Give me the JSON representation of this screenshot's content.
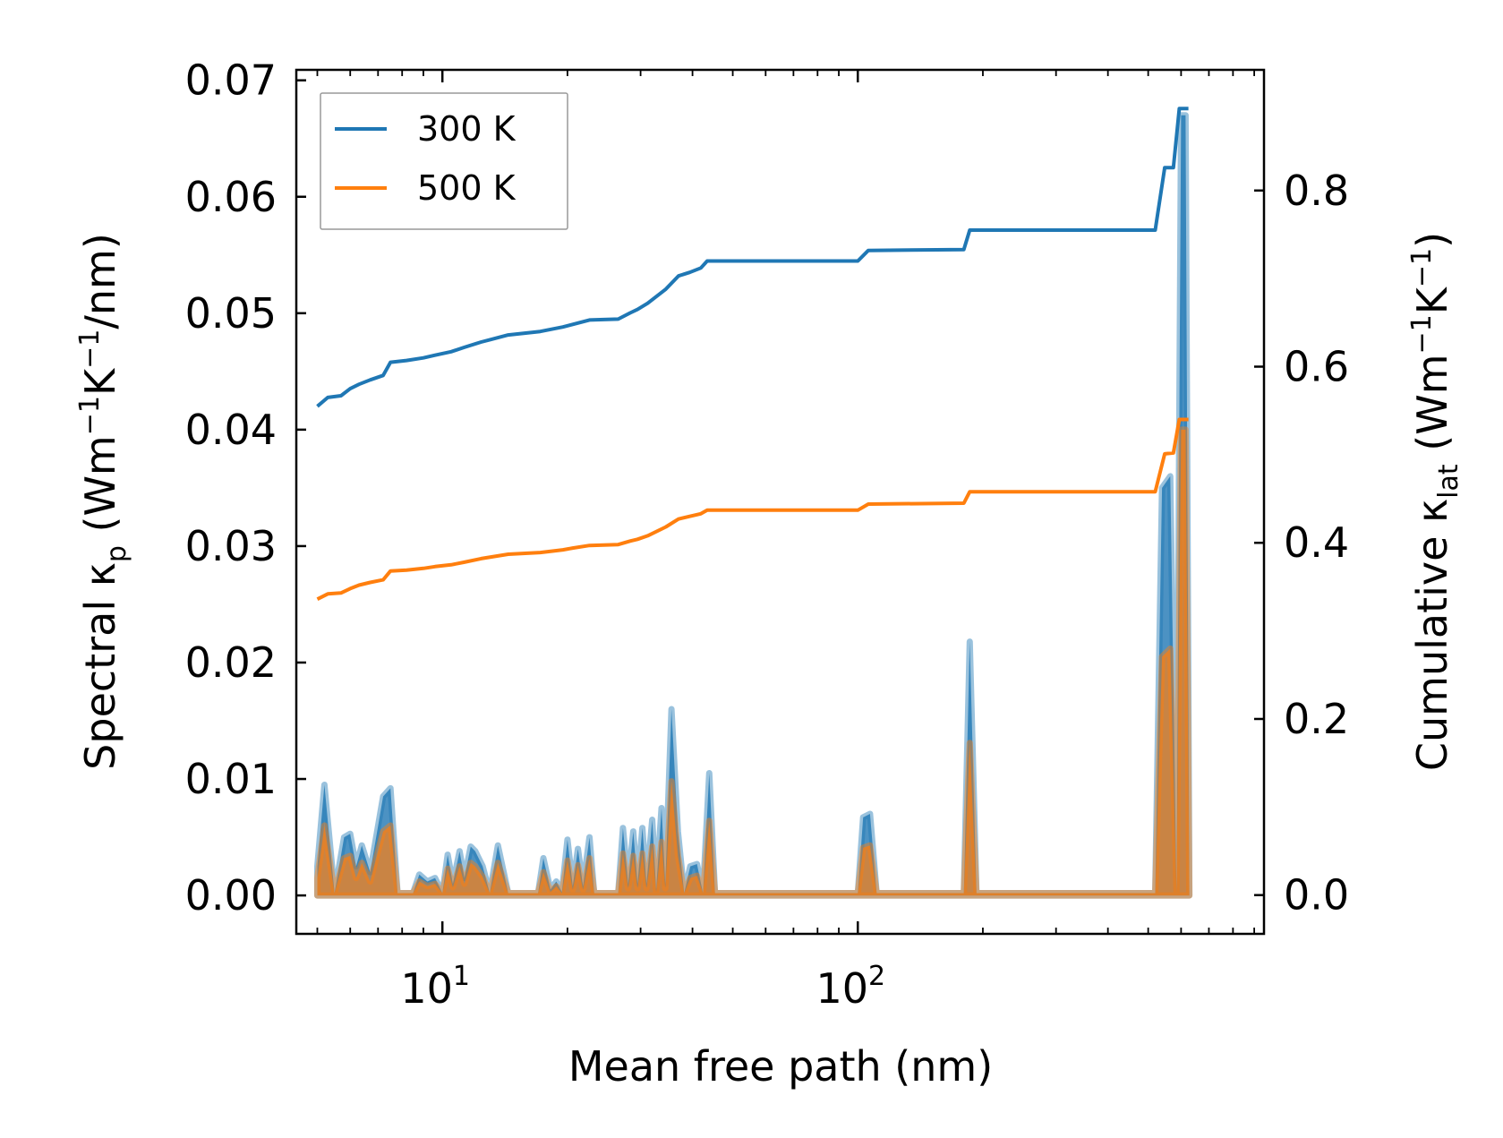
{
  "chart_data": {
    "type": "line",
    "xscale": "log",
    "xlabel": "Mean free path (nm)",
    "xlim": [
      4.45,
      950
    ],
    "x_major_ticks": [
      {
        "value": 10,
        "base": "10",
        "exp": "1"
      },
      {
        "value": 100,
        "base": "10",
        "exp": "2"
      }
    ],
    "y_left": {
      "label_main": "Spectral κ",
      "label_sub": "p",
      "label_units_open": " (Wm",
      "label_units_sup1": "−1",
      "label_units_mid": "K",
      "label_units_sup2": "−1",
      "label_units_close": "/nm)",
      "ylim": [
        -0.0033,
        0.0709
      ],
      "ticks": [
        {
          "value": 0.0,
          "label": "0.00"
        },
        {
          "value": 0.01,
          "label": "0.01"
        },
        {
          "value": 0.02,
          "label": "0.02"
        },
        {
          "value": 0.03,
          "label": "0.03"
        },
        {
          "value": 0.04,
          "label": "0.04"
        },
        {
          "value": 0.05,
          "label": "0.05"
        },
        {
          "value": 0.06,
          "label": "0.06"
        },
        {
          "value": 0.07,
          "label": "0.07"
        }
      ]
    },
    "y_right": {
      "label_main": "Cumulative κ",
      "label_sub": "lat",
      "label_units_open": " (Wm",
      "label_units_sup1": "−1",
      "label_units_mid": "K",
      "label_units_sup2": "−1",
      "label_units_close": ")",
      "ylim": [
        -0.044,
        0.937
      ],
      "ticks": [
        {
          "value": 0.0,
          "label": "0.0"
        },
        {
          "value": 0.2,
          "label": "0.2"
        },
        {
          "value": 0.4,
          "label": "0.4"
        },
        {
          "value": 0.6,
          "label": "0.6"
        },
        {
          "value": 0.8,
          "label": "0.8"
        }
      ]
    },
    "legend": {
      "position": "top-left",
      "entries": [
        {
          "label": "300 K",
          "color": "#1f77b4"
        },
        {
          "label": "500 K",
          "color": "#ff7f0e"
        }
      ]
    },
    "series": [
      {
        "name": "300 K",
        "color": "#1f77b4",
        "spectral_axis": "left",
        "spectral": [
          [
            5,
            0.0025
          ],
          [
            5.2,
            0.0095
          ],
          [
            5.5,
            0.0002
          ],
          [
            5.8,
            0.005
          ],
          [
            6.0,
            0.0053
          ],
          [
            6.2,
            0.0025
          ],
          [
            6.4,
            0.0043
          ],
          [
            6.7,
            0.002
          ],
          [
            7.2,
            0.0085
          ],
          [
            7.5,
            0.0092
          ],
          [
            7.8,
            0.0002
          ],
          [
            8.5,
            0.0002
          ],
          [
            8.8,
            0.0018
          ],
          [
            9.2,
            0.0012
          ],
          [
            9.6,
            0.0015
          ],
          [
            10.0,
            0.0002
          ],
          [
            10.3,
            0.0035
          ],
          [
            10.6,
            0.001
          ],
          [
            11.0,
            0.0038
          ],
          [
            11.3,
            0.0015
          ],
          [
            11.7,
            0.0042
          ],
          [
            12.0,
            0.0038
          ],
          [
            12.5,
            0.0025
          ],
          [
            13.0,
            0.0002
          ],
          [
            13.6,
            0.0043
          ],
          [
            14.4,
            0.0002
          ],
          [
            17.0,
            0.0002
          ],
          [
            17.5,
            0.0032
          ],
          [
            18.2,
            0.0005
          ],
          [
            18.8,
            0.0012
          ],
          [
            19.4,
            0.0003
          ],
          [
            20.0,
            0.0048
          ],
          [
            20.6,
            0.0008
          ],
          [
            21.2,
            0.004
          ],
          [
            21.8,
            0.0008
          ],
          [
            22.6,
            0.005
          ],
          [
            23.2,
            0.0002
          ],
          [
            26.5,
            0.0002
          ],
          [
            27.2,
            0.0058
          ],
          [
            28.0,
            0.001
          ],
          [
            28.8,
            0.0055
          ],
          [
            29.5,
            0.001
          ],
          [
            30.3,
            0.0058
          ],
          [
            31.0,
            0.001
          ],
          [
            32.0,
            0.0065
          ],
          [
            32.7,
            0.0005
          ],
          [
            33.7,
            0.0075
          ],
          [
            34.4,
            0.001
          ],
          [
            35.6,
            0.016
          ],
          [
            36.9,
            0.0055
          ],
          [
            38.2,
            0.0002
          ],
          [
            39.5,
            0.0025
          ],
          [
            41.0,
            0.0027
          ],
          [
            42.4,
            0.0002
          ],
          [
            43.9,
            0.0105
          ],
          [
            45.3,
            0.0002
          ],
          [
            100,
            0.0002
          ],
          [
            103,
            0.0067
          ],
          [
            107,
            0.007
          ],
          [
            111,
            0.0002
          ],
          [
            180,
            0.0002
          ],
          [
            186,
            0.0218
          ],
          [
            193,
            0.0002
          ],
          [
            520,
            0.0002
          ],
          [
            540,
            0.035
          ],
          [
            565,
            0.036
          ],
          [
            585,
            0.0002
          ],
          [
            600,
            0.067
          ],
          [
            615,
            0.067
          ],
          [
            628,
            0.0002
          ]
        ],
        "cumulative_axis": "right",
        "cumulative": [
          [
            5.0,
            0.555
          ],
          [
            5.3,
            0.565
          ],
          [
            5.7,
            0.567
          ],
          [
            6.0,
            0.575
          ],
          [
            6.3,
            0.58
          ],
          [
            6.7,
            0.585
          ],
          [
            7.2,
            0.59
          ],
          [
            7.5,
            0.605
          ],
          [
            8.2,
            0.607
          ],
          [
            9.0,
            0.61
          ],
          [
            9.6,
            0.613
          ],
          [
            10.5,
            0.617
          ],
          [
            11.3,
            0.622
          ],
          [
            12.4,
            0.628
          ],
          [
            14.4,
            0.636
          ],
          [
            17.2,
            0.64
          ],
          [
            19.5,
            0.645
          ],
          [
            20.6,
            0.648
          ],
          [
            22.6,
            0.653
          ],
          [
            26.5,
            0.654
          ],
          [
            28.3,
            0.661
          ],
          [
            29.5,
            0.665
          ],
          [
            31.2,
            0.672
          ],
          [
            34.5,
            0.688
          ],
          [
            37.0,
            0.703
          ],
          [
            39.4,
            0.707
          ],
          [
            41.9,
            0.712
          ],
          [
            43.4,
            0.72
          ],
          [
            100,
            0.72
          ],
          [
            106,
            0.732
          ],
          [
            180,
            0.733
          ],
          [
            186,
            0.755
          ],
          [
            520,
            0.755
          ],
          [
            548,
            0.826
          ],
          [
            575,
            0.826
          ],
          [
            594,
            0.893
          ],
          [
            625,
            0.893
          ]
        ]
      },
      {
        "name": "500 K",
        "color": "#ff7f0e",
        "spectral_axis": "left",
        "spectral": [
          [
            5,
            0.0015
          ],
          [
            5.2,
            0.006
          ],
          [
            5.5,
            0.0002
          ],
          [
            5.8,
            0.0032
          ],
          [
            6.0,
            0.0034
          ],
          [
            6.2,
            0.0015
          ],
          [
            6.4,
            0.0028
          ],
          [
            6.7,
            0.0012
          ],
          [
            7.2,
            0.0055
          ],
          [
            7.5,
            0.006
          ],
          [
            7.8,
            0.0002
          ],
          [
            8.5,
            0.0002
          ],
          [
            8.8,
            0.0012
          ],
          [
            9.2,
            0.0008
          ],
          [
            9.6,
            0.001
          ],
          [
            10.0,
            0.0002
          ],
          [
            10.3,
            0.0023
          ],
          [
            10.6,
            0.0007
          ],
          [
            11.0,
            0.0025
          ],
          [
            11.3,
            0.001
          ],
          [
            11.7,
            0.0028
          ],
          [
            12.0,
            0.0025
          ],
          [
            12.5,
            0.0016
          ],
          [
            13.0,
            0.0002
          ],
          [
            13.6,
            0.0028
          ],
          [
            14.4,
            0.0002
          ],
          [
            17.0,
            0.0002
          ],
          [
            17.5,
            0.002
          ],
          [
            18.2,
            0.0003
          ],
          [
            18.8,
            0.0008
          ],
          [
            19.4,
            0.0002
          ],
          [
            20.0,
            0.003
          ],
          [
            20.6,
            0.0005
          ],
          [
            21.2,
            0.0026
          ],
          [
            21.8,
            0.0005
          ],
          [
            22.6,
            0.0032
          ],
          [
            23.2,
            0.0002
          ],
          [
            26.5,
            0.0002
          ],
          [
            27.2,
            0.0036
          ],
          [
            28.0,
            0.0006
          ],
          [
            28.8,
            0.0034
          ],
          [
            29.5,
            0.0006
          ],
          [
            30.3,
            0.0036
          ],
          [
            31.0,
            0.0006
          ],
          [
            32.0,
            0.0042
          ],
          [
            32.7,
            0.0003
          ],
          [
            33.7,
            0.0046
          ],
          [
            34.4,
            0.0006
          ],
          [
            35.6,
            0.0098
          ],
          [
            36.9,
            0.0034
          ],
          [
            38.2,
            0.0002
          ],
          [
            39.5,
            0.0015
          ],
          [
            41.0,
            0.0017
          ],
          [
            42.4,
            0.0002
          ],
          [
            43.9,
            0.0064
          ],
          [
            45.3,
            0.0002
          ],
          [
            100,
            0.0002
          ],
          [
            103,
            0.0041
          ],
          [
            107,
            0.0043
          ],
          [
            111,
            0.0002
          ],
          [
            180,
            0.0002
          ],
          [
            186,
            0.0131
          ],
          [
            193,
            0.0002
          ],
          [
            520,
            0.0002
          ],
          [
            540,
            0.0205
          ],
          [
            565,
            0.0212
          ],
          [
            585,
            0.0002
          ],
          [
            600,
            0.04
          ],
          [
            615,
            0.04
          ],
          [
            628,
            0.0002
          ]
        ],
        "cumulative_axis": "right",
        "cumulative": [
          [
            5.0,
            0.336
          ],
          [
            5.3,
            0.342
          ],
          [
            5.7,
            0.343
          ],
          [
            6.0,
            0.348
          ],
          [
            6.3,
            0.352
          ],
          [
            6.7,
            0.355
          ],
          [
            7.2,
            0.358
          ],
          [
            7.5,
            0.368
          ],
          [
            8.2,
            0.369
          ],
          [
            9.0,
            0.371
          ],
          [
            9.6,
            0.373
          ],
          [
            10.5,
            0.375
          ],
          [
            11.3,
            0.378
          ],
          [
            12.4,
            0.382
          ],
          [
            14.4,
            0.387
          ],
          [
            17.2,
            0.389
          ],
          [
            19.5,
            0.392
          ],
          [
            20.6,
            0.394
          ],
          [
            22.6,
            0.397
          ],
          [
            26.5,
            0.398
          ],
          [
            28.3,
            0.402
          ],
          [
            29.5,
            0.404
          ],
          [
            31.2,
            0.408
          ],
          [
            34.5,
            0.418
          ],
          [
            37.0,
            0.427
          ],
          [
            39.4,
            0.43
          ],
          [
            41.9,
            0.433
          ],
          [
            43.4,
            0.437
          ],
          [
            100,
            0.437
          ],
          [
            106,
            0.444
          ],
          [
            180,
            0.445
          ],
          [
            186,
            0.458
          ],
          [
            520,
            0.458
          ],
          [
            548,
            0.501
          ],
          [
            575,
            0.502
          ],
          [
            594,
            0.54
          ],
          [
            625,
            0.54
          ]
        ]
      }
    ]
  }
}
